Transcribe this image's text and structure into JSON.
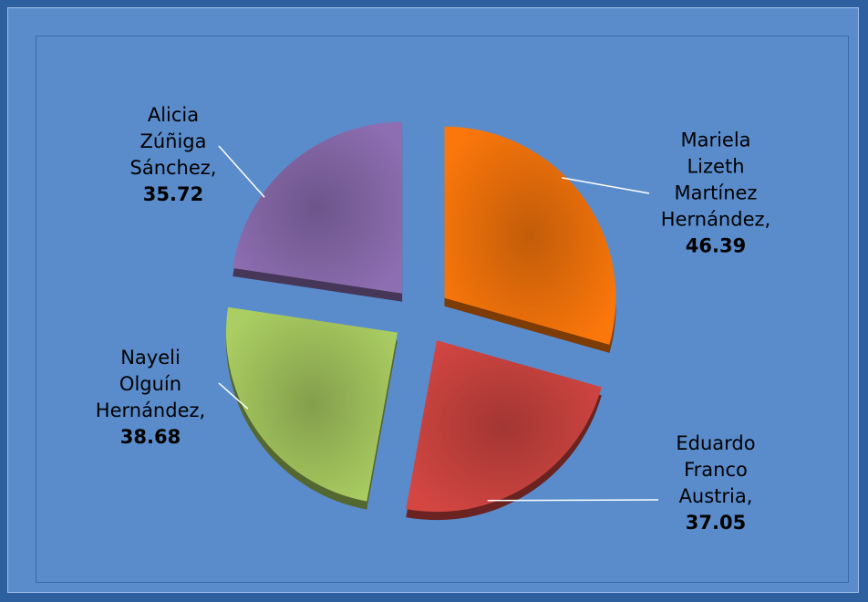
{
  "chart_data": {
    "type": "pie",
    "categories": [
      "Mariela Lizeth Martínez Hernández,",
      "Eduardo Franco Austria,",
      "Nayeli Olguín Hernández,",
      "Alicia Zúñiga Sánchez,"
    ],
    "values": [
      46.39,
      37.05,
      38.68,
      35.72
    ],
    "colors": [
      "#e46c0a",
      "#c0403c",
      "#9bbb59",
      "#8064a2"
    ]
  }
}
